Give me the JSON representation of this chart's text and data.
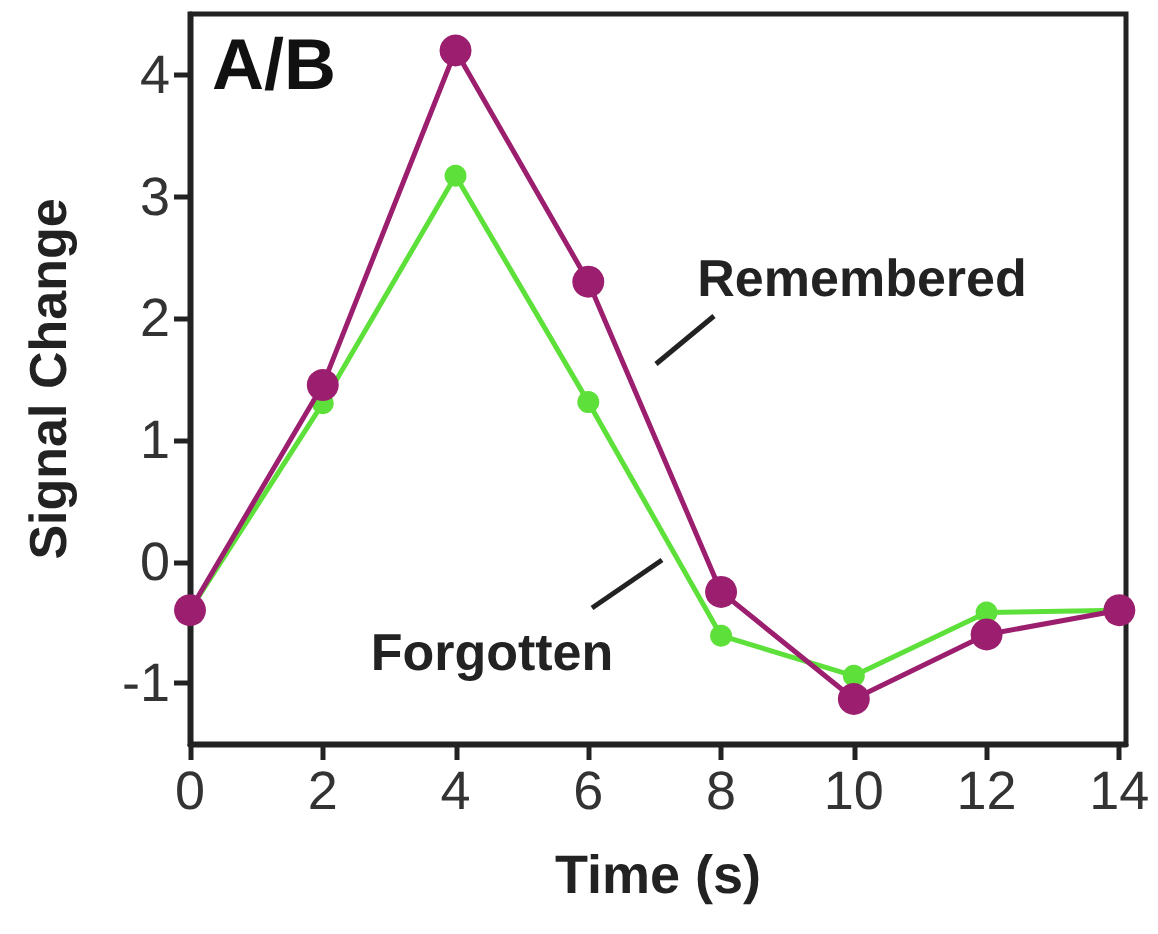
{
  "chart_data": {
    "type": "line",
    "title": "A/B",
    "xlabel": "Time (s)",
    "ylabel": "Signal Change",
    "x": [
      0,
      2,
      4,
      6,
      8,
      10,
      12,
      14
    ],
    "series": [
      {
        "name": "Remembered",
        "color": "#9b1f6e",
        "values": [
          -0.4,
          1.45,
          4.2,
          2.3,
          -0.25,
          -1.13,
          -0.6,
          -0.4
        ]
      },
      {
        "name": "Forgotten",
        "color": "#5ee03a",
        "values": [
          -0.4,
          1.3,
          3.17,
          1.31,
          -0.61,
          -0.94,
          -0.42,
          -0.4
        ]
      }
    ],
    "xlim": [
      0,
      14.1
    ],
    "xticks": [
      0,
      2,
      4,
      6,
      8,
      10,
      12,
      14
    ],
    "ylim": [
      -1.5,
      4.5
    ],
    "yticks": [
      -1,
      0,
      1,
      2,
      3,
      4
    ],
    "grid": false,
    "legend": false,
    "marker": "circle",
    "line_style": "solid"
  }
}
